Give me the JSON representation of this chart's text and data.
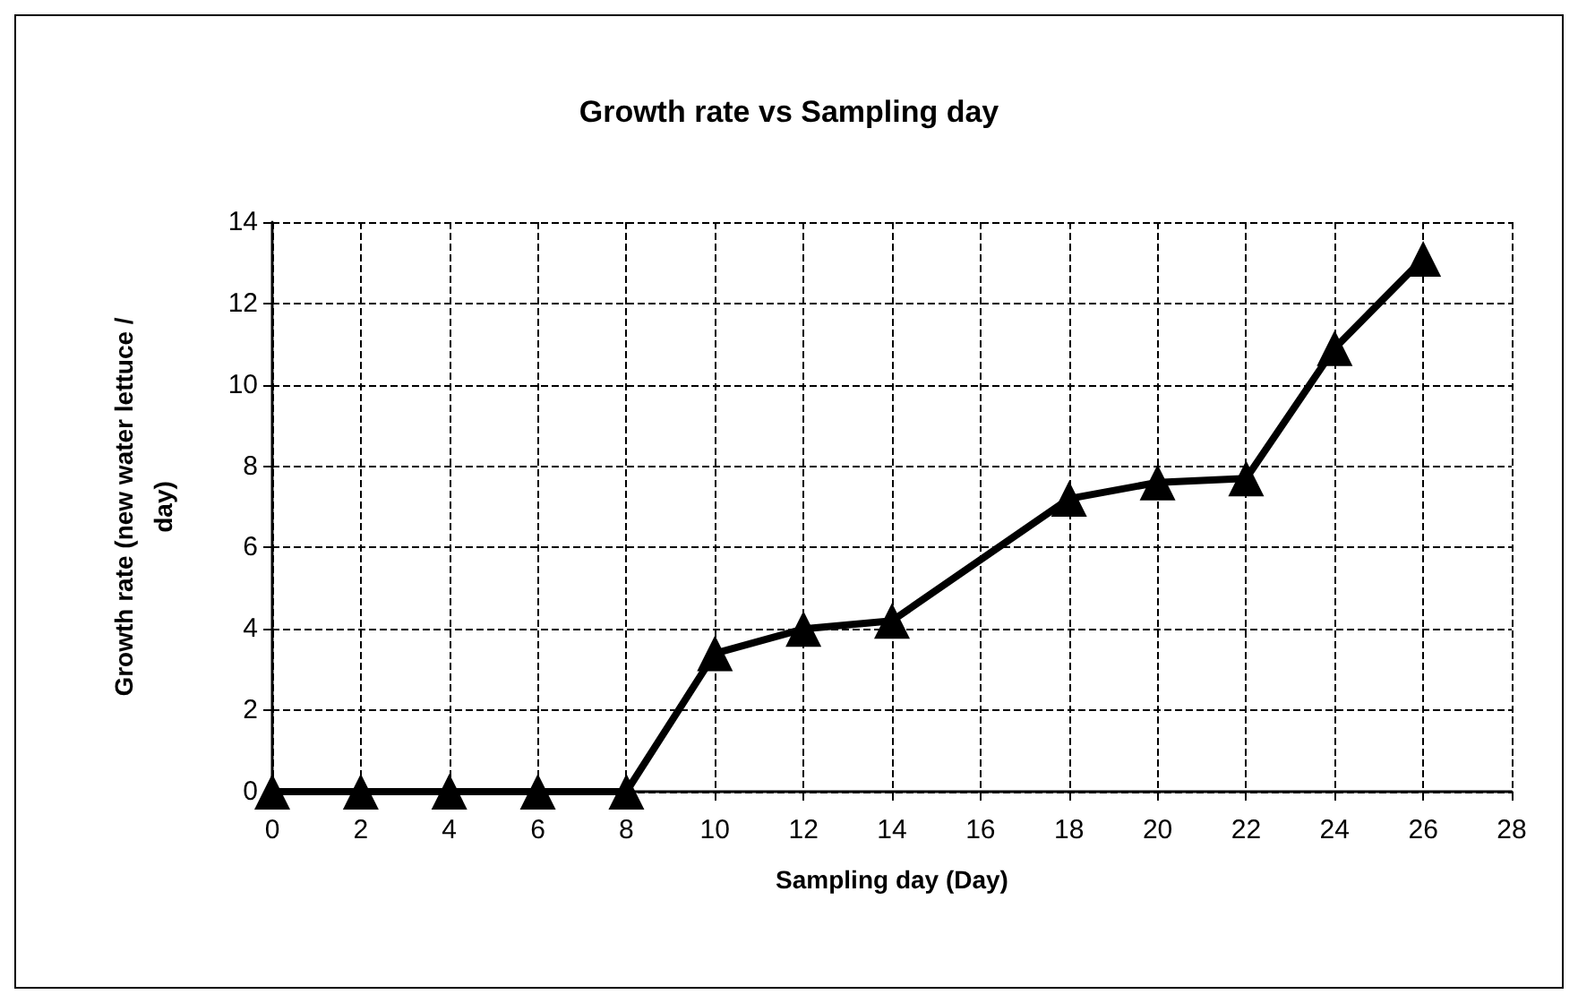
{
  "chart_data": {
    "type": "line",
    "title": "Growth rate vs Sampling day",
    "xlabel": "Sampling day (Day)",
    "ylabel": "Growth rate (new water lettuce /\nday)",
    "x": [
      0,
      2,
      4,
      6,
      8,
      10,
      12,
      14,
      18,
      20,
      22,
      24,
      26
    ],
    "series": [
      {
        "color": "#000000",
        "values": [
          0,
          0,
          0,
          0,
          0,
          3.4,
          4.0,
          4.2,
          7.2,
          7.6,
          7.7,
          10.9,
          13.1
        ]
      }
    ],
    "xlim": [
      0,
      28
    ],
    "xticks": [
      0,
      2,
      4,
      6,
      8,
      10,
      12,
      14,
      16,
      18,
      20,
      22,
      24,
      26,
      28
    ],
    "ylim": [
      0,
      14
    ],
    "yticks": [
      0,
      2,
      4,
      6,
      8,
      10,
      12,
      14
    ],
    "grid": true,
    "marker": "triangle",
    "line_style": "solid"
  }
}
